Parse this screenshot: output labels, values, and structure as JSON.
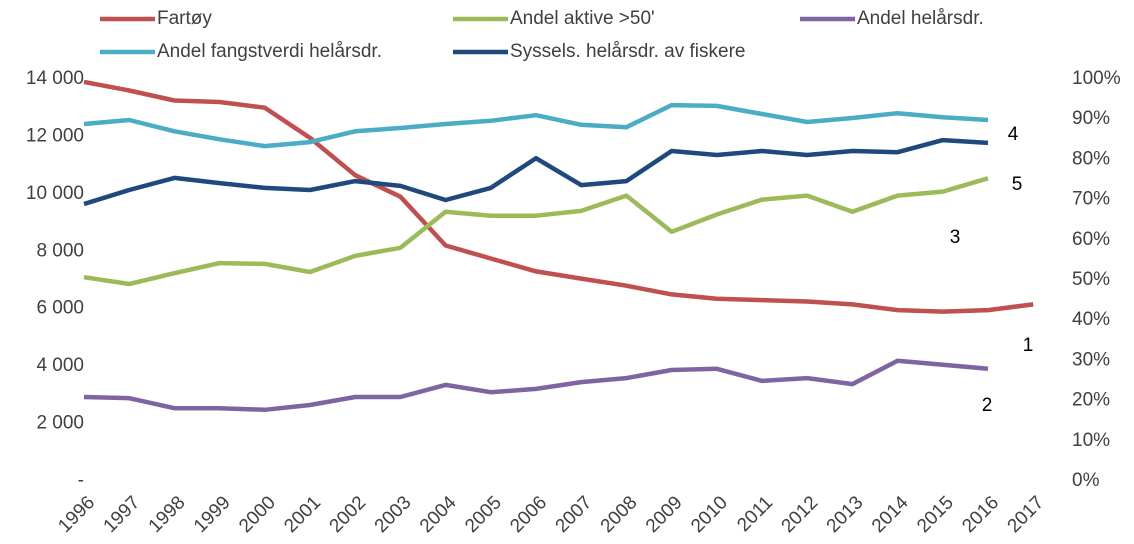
{
  "chart_data": {
    "type": "line",
    "categories": [
      "1996",
      "1997",
      "1998",
      "1999",
      "2000",
      "2001",
      "2002",
      "2003",
      "2004",
      "2005",
      "2006",
      "2007",
      "2008",
      "2009",
      "2010",
      "2011",
      "2012",
      "2013",
      "2014",
      "2015",
      "2016",
      "2017"
    ],
    "series": [
      {
        "name": "Fartøy",
        "color": "#c0504d",
        "values": [
          13900,
          13600,
          13250,
          13200,
          13000,
          11950,
          10650,
          9900,
          8200,
          7750,
          7300,
          7050,
          6800,
          6500,
          6350,
          6300,
          6250,
          6150,
          5950,
          5900,
          5950,
          6150
        ]
      },
      {
        "name": "Andel aktive >50'",
        "color": "#9bbb59",
        "axis": "y2",
        "values": [
          50.7,
          49,
          51.7,
          54.2,
          54,
          52,
          56,
          58,
          67,
          66,
          66,
          67.2,
          71,
          62,
          66.3,
          70,
          71,
          67,
          71,
          72,
          75.3,
          null
        ]
      },
      {
        "name": "Andel helårsdr.",
        "color": "#8064a2",
        "axis": "y2",
        "values": [
          20.9,
          20.6,
          18.1,
          18.1,
          17.7,
          18.9,
          20.9,
          20.9,
          23.9,
          22.1,
          22.9,
          24.6,
          25.6,
          27.6,
          27.9,
          24.9,
          25.6,
          24.1,
          29.9,
          28.9,
          27.9,
          null
        ]
      },
      {
        "name": "Andel fangstverdi helårsdr.",
        "color": "#4bacc6",
        "axis": "y2",
        "values": [
          88.8,
          89.8,
          87,
          85,
          83.3,
          84.3,
          87,
          87.8,
          88.8,
          89.6,
          91,
          88.6,
          88,
          93.5,
          93.3,
          91.3,
          89.3,
          90.3,
          91.5,
          90.5,
          89.8,
          null
        ]
      },
      {
        "name": "Syssels. helårsdr. av fiskere",
        "color": "#1f497d",
        "axis": "y2",
        "values": [
          68.9,
          72.4,
          75.4,
          74.1,
          72.9,
          72.4,
          74.6,
          73.4,
          69.9,
          72.9,
          80.3,
          73.6,
          74.6,
          82.1,
          81.1,
          82.1,
          81.1,
          82.1,
          81.8,
          84.8,
          84.1,
          null
        ]
      }
    ],
    "ylim": [
      0,
      14000
    ],
    "yticks": [
      {
        "value": 0,
        "label": "-"
      },
      {
        "value": 2000,
        "label": "2 000"
      },
      {
        "value": 4000,
        "label": "4 000"
      },
      {
        "value": 6000,
        "label": "6 000"
      },
      {
        "value": 8000,
        "label": "8 000"
      },
      {
        "value": 10000,
        "label": "10 000"
      },
      {
        "value": 12000,
        "label": "12 000"
      },
      {
        "value": 14000,
        "label": "14 000"
      }
    ],
    "y2lim": [
      0,
      100
    ],
    "y2ticks": [
      {
        "value": 0,
        "label": "0%"
      },
      {
        "value": 10,
        "label": "10%"
      },
      {
        "value": 20,
        "label": "20%"
      },
      {
        "value": 30,
        "label": "30%"
      },
      {
        "value": 40,
        "label": "40%"
      },
      {
        "value": 50,
        "label": "50%"
      },
      {
        "value": 60,
        "label": "60%"
      },
      {
        "value": 70,
        "label": "70%"
      },
      {
        "value": 80,
        "label": "80%"
      },
      {
        "value": 90,
        "label": "90%"
      },
      {
        "value": 100,
        "label": "100%"
      }
    ],
    "annotations": [
      "4",
      "5",
      "3",
      "1",
      "2"
    ],
    "grid": false
  }
}
